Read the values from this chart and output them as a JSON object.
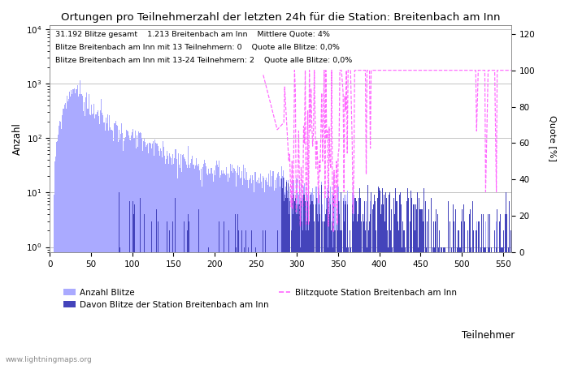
{
  "title": "Ortungen pro Teilnehmerzahl der letzten 24h für die Station: Breitenbach am Inn",
  "xlabel": "Teilnehmer",
  "ylabel_left": "Anzahl",
  "ylabel_right": "Quote [%]",
  "annotation_lines": [
    "31.192 Blitze gesamt    1.213 Breitenbach am Inn    Mittlere Quote: 4%",
    "Blitze Breitenbach am Inn mit 13 Teilnehmern: 0    Quote alle Blitze: 0,0%",
    "Blitze Breitenbach am Inn mit 13-24 Teilnehmern: 2    Quote alle Blitze: 0,0%"
  ],
  "watermark": "www.lightningmaps.org",
  "bar_color_total": "#aaaaff",
  "bar_color_station": "#4444bb",
  "line_color_quote": "#ff66ff",
  "xlim": [
    0,
    560
  ],
  "ylim_right": [
    0,
    125
  ],
  "yticks_right": [
    0,
    20,
    40,
    60,
    80,
    100,
    120
  ],
  "legend_entries": [
    "Anzahl Blitze",
    "Davon Blitze der Station Breitenbach am Inn",
    "Blitzquote Station Breitenbach am Inn"
  ],
  "figsize": [
    7.0,
    4.5
  ],
  "dpi": 100
}
